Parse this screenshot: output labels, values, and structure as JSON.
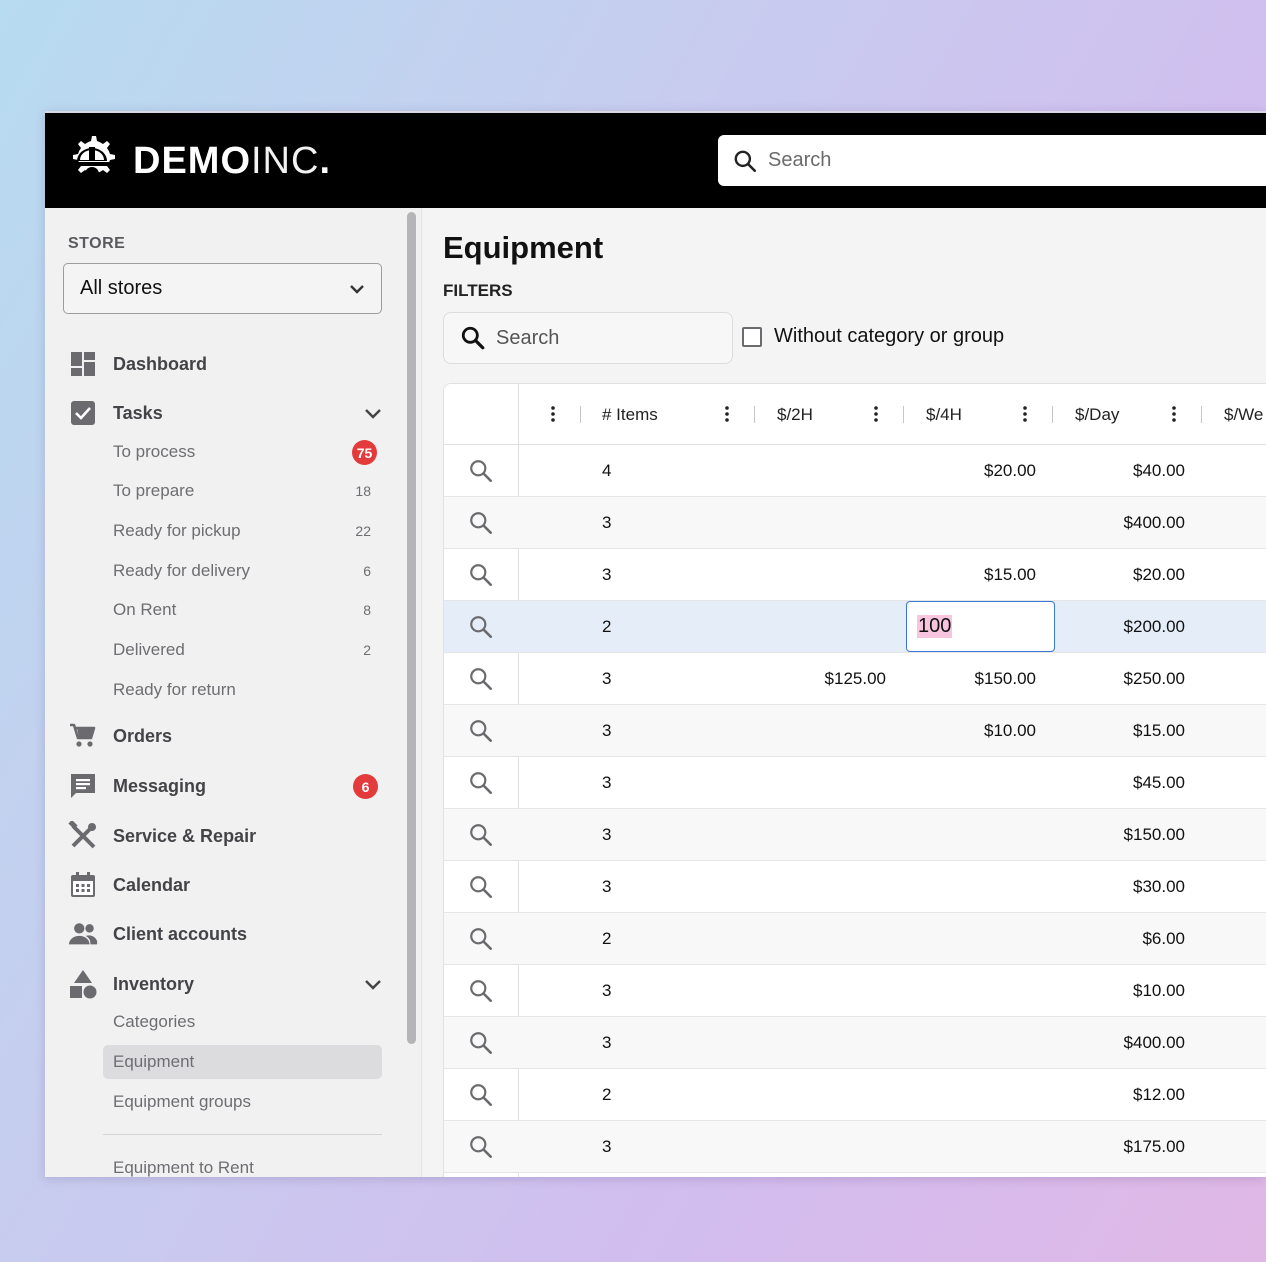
{
  "header": {
    "logo_main": "DEMO",
    "logo_thin": "INC",
    "logo_dot": ".",
    "search_placeholder": "Search"
  },
  "sidebar": {
    "store_label": "STORE",
    "store_value": "All stores",
    "nav": {
      "dashboard": "Dashboard",
      "tasks": "Tasks",
      "orders": "Orders",
      "messaging": "Messaging",
      "messaging_badge": "6",
      "service_repair": "Service & Repair",
      "calendar": "Calendar",
      "client_accounts": "Client accounts",
      "inventory": "Inventory"
    },
    "tasks_sub": [
      {
        "label": "To process",
        "count": "75"
      },
      {
        "label": "To prepare",
        "count": "18"
      },
      {
        "label": "Ready for pickup",
        "count": "22"
      },
      {
        "label": "Ready for delivery",
        "count": "6"
      },
      {
        "label": "On Rent",
        "count": "8"
      },
      {
        "label": "Delivered",
        "count": "2"
      },
      {
        "label": "Ready for return",
        "count": ""
      }
    ],
    "inventory_sub": [
      {
        "label": "Categories"
      },
      {
        "label": "Equipment"
      },
      {
        "label": "Equipment groups"
      }
    ],
    "extra_item": "Equipment to Rent"
  },
  "main": {
    "title": "Equipment",
    "filters_label": "FILTERS",
    "search_placeholder": "Search",
    "checkbox_label": "Without category or group"
  },
  "grid": {
    "headers": [
      "# Items",
      "$/2H",
      "$/4H",
      "$/Day",
      "$/We"
    ],
    "edit_value": "100",
    "rows": [
      {
        "items": "4",
        "h2": "",
        "h4": "$20.00",
        "day": "$40.00"
      },
      {
        "items": "3",
        "h2": "",
        "h4": "",
        "day": "$400.00"
      },
      {
        "items": "3",
        "h2": "",
        "h4": "$15.00",
        "day": "$20.00"
      },
      {
        "items": "2",
        "h2": "",
        "h4": "",
        "day": "$200.00"
      },
      {
        "items": "3",
        "h2": "$125.00",
        "h4": "$150.00",
        "day": "$250.00"
      },
      {
        "items": "3",
        "h2": "",
        "h4": "$10.00",
        "day": "$15.00"
      },
      {
        "items": "3",
        "h2": "",
        "h4": "",
        "day": "$45.00"
      },
      {
        "items": "3",
        "h2": "",
        "h4": "",
        "day": "$150.00"
      },
      {
        "items": "3",
        "h2": "",
        "h4": "",
        "day": "$30.00"
      },
      {
        "items": "2",
        "h2": "",
        "h4": "",
        "day": "$6.00"
      },
      {
        "items": "3",
        "h2": "",
        "h4": "",
        "day": "$10.00"
      },
      {
        "items": "3",
        "h2": "",
        "h4": "",
        "day": "$400.00"
      },
      {
        "items": "2",
        "h2": "",
        "h4": "",
        "day": "$12.00"
      },
      {
        "items": "3",
        "h2": "",
        "h4": "",
        "day": "$175.00"
      }
    ]
  }
}
